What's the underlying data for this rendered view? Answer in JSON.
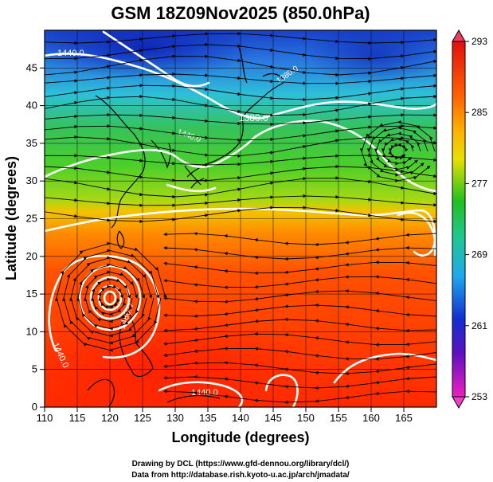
{
  "title": "GSM 18Z09Nov2025 (850.0hPa)",
  "xaxis": {
    "label": "Longitude (degrees)",
    "range": [
      110,
      170
    ],
    "ticks": [
      "110",
      "115",
      "120",
      "125",
      "130",
      "135",
      "140",
      "145",
      "150",
      "155",
      "160",
      "165"
    ]
  },
  "yaxis": {
    "label": "Latitude  (degrees)",
    "range": [
      0,
      50
    ],
    "ticks": [
      "0",
      "5",
      "10",
      "15",
      "20",
      "25",
      "30",
      "35",
      "40",
      "45"
    ]
  },
  "colorbar": {
    "ticks": [
      "293",
      "285",
      "277",
      "269",
      "261",
      "253"
    ],
    "range": [
      253,
      293
    ]
  },
  "contour_labels": [
    "1440.0",
    "1380.0",
    "1440.0",
    "1380.0",
    "1480.0",
    "1440.0",
    "1440.0"
  ],
  "credits": {
    "line1": "Drawing by DCL (https://www.gfd-dennou.org/library/dcl/)",
    "line2": "Data from http://database.rish.kyoto-u.ac.jp/arch/jmadata/"
  },
  "colors": {
    "cold": "#1a3fd0",
    "cool": "#2ec7e6",
    "mild": "#3cc63a",
    "warm": "#f0d000",
    "hot": "#ff3a00"
  }
}
